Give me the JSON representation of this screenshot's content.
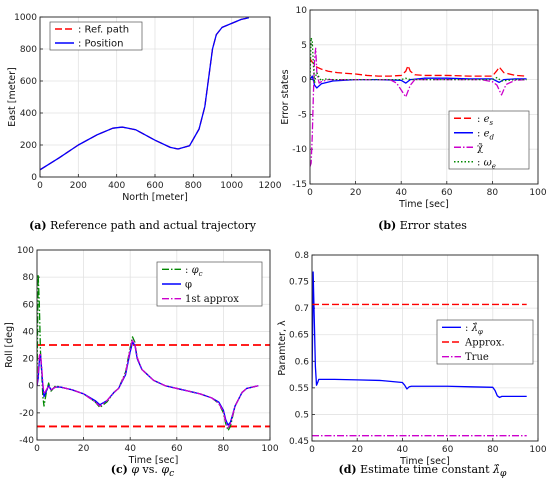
{
  "chart_data": [
    {
      "id": "a",
      "type": "line",
      "caption_label": "(a)",
      "caption_text": "Reference path and actual trajectory",
      "xlabel": "North [meter]",
      "ylabel": "East [meter]",
      "xlim": [
        0,
        1200
      ],
      "ylim": [
        0,
        1000
      ],
      "xticks": [
        0,
        200,
        400,
        600,
        800,
        1000,
        1200
      ],
      "yticks": [
        0,
        200,
        400,
        600,
        800,
        1000
      ],
      "grid": true,
      "legend_position": "top-left",
      "series": [
        {
          "name": ": Ref. path",
          "color": "#ff0000",
          "dash": "dashed",
          "x": [
            0,
            100,
            200,
            300,
            380,
            430,
            500,
            600,
            680,
            720,
            780,
            830,
            860,
            880,
            900,
            920,
            950,
            1000,
            1050,
            1090
          ],
          "y": [
            45,
            120,
            200,
            265,
            305,
            312,
            295,
            230,
            185,
            175,
            195,
            300,
            440,
            620,
            800,
            890,
            935,
            960,
            985,
            995
          ]
        },
        {
          "name": ": Position",
          "color": "#0000ff",
          "dash": "solid",
          "x": [
            0,
            100,
            200,
            300,
            380,
            430,
            500,
            600,
            680,
            720,
            780,
            830,
            860,
            880,
            900,
            920,
            950,
            1000,
            1050,
            1090
          ],
          "y": [
            45,
            120,
            200,
            265,
            305,
            312,
            295,
            230,
            185,
            175,
            195,
            300,
            440,
            620,
            800,
            890,
            935,
            960,
            985,
            995
          ]
        }
      ]
    },
    {
      "id": "b",
      "type": "line",
      "caption_label": "(b)",
      "caption_text": "Error states",
      "xlabel": "Time [sec]",
      "ylabel": "Error states",
      "xlim": [
        0,
        100
      ],
      "ylim": [
        -15,
        10
      ],
      "xticks": [
        0,
        20,
        40,
        60,
        80,
        100
      ],
      "yticks": [
        -15,
        -10,
        -5,
        0,
        5,
        10
      ],
      "grid": true,
      "legend_position": "bottom-right",
      "series": [
        {
          "name": "e_s",
          "color": "#ff0000",
          "dash": "dashed",
          "x": [
            0,
            1,
            2,
            3,
            5,
            8,
            12,
            16,
            20,
            25,
            30,
            35,
            40,
            42,
            43,
            44,
            46,
            50,
            60,
            70,
            80,
            82,
            83,
            85,
            90,
            95
          ],
          "y": [
            3,
            2.5,
            2.2,
            1.8,
            1.5,
            1.2,
            1,
            0.9,
            0.8,
            0.6,
            0.5,
            0.5,
            0.6,
            1.2,
            2,
            1.2,
            0.7,
            0.6,
            0.6,
            0.5,
            0.5,
            1.3,
            1.8,
            1.0,
            0.6,
            0.5
          ]
        },
        {
          "name": "e_d",
          "color": "#0000ff",
          "dash": "solid",
          "x": [
            0,
            1,
            2,
            3,
            5,
            10,
            20,
            30,
            40,
            42,
            44,
            50,
            60,
            70,
            80,
            83,
            85,
            90,
            95
          ],
          "y": [
            0,
            0.5,
            -0.8,
            -1.2,
            -0.6,
            -0.2,
            0,
            0,
            -0.1,
            -0.5,
            0,
            0.2,
            0.2,
            0.1,
            0.1,
            -0.4,
            0,
            0.1,
            0.1
          ]
        },
        {
          "name": "χ̃",
          "color": "#cc00cc",
          "dash": "dashdot",
          "x": [
            0,
            0.5,
            1,
            1.5,
            2,
            2.5,
            3,
            4,
            5,
            8,
            15,
            25,
            35,
            38,
            40,
            42,
            44,
            46,
            55,
            65,
            75,
            80,
            82,
            84,
            86,
            90,
            95
          ],
          "y": [
            -12.5,
            -12,
            -8,
            -2,
            3,
            4.5,
            1,
            -0.5,
            -0.3,
            0,
            0,
            0,
            0,
            -0.5,
            -1.5,
            -2.5,
            -0.8,
            0,
            0,
            0,
            0,
            -0.3,
            -0.8,
            -2.2,
            -0.7,
            -0.1,
            0
          ]
        },
        {
          "name": "ω_e",
          "color": "#008800",
          "dash": "dotted",
          "x": [
            0,
            0.5,
            1,
            1.5,
            2,
            2.5,
            3,
            4,
            5,
            6,
            10,
            20,
            30,
            40,
            42,
            44,
            50,
            60,
            70,
            80,
            82,
            84,
            90,
            95
          ],
          "y": [
            0,
            6,
            5.5,
            2,
            -0.5,
            0.5,
            1,
            0.3,
            -0.2,
            0.1,
            0,
            0,
            0,
            0,
            0.2,
            0,
            0,
            0,
            0,
            0,
            0.3,
            -0.2,
            0,
            0
          ]
        }
      ]
    },
    {
      "id": "c",
      "type": "line",
      "caption_label": "(c)",
      "caption_math_1": "φ",
      "caption_text_mid": " vs. ",
      "caption_math_2": "φ",
      "caption_sub_2": "c",
      "xlabel": "Time [sec]",
      "ylabel": "Roll [deg]",
      "xlim": [
        0,
        100
      ],
      "ylim": [
        -40,
        100
      ],
      "xticks": [
        0,
        20,
        40,
        60,
        80,
        100
      ],
      "yticks": [
        -40,
        -20,
        0,
        20,
        40,
        60,
        80,
        100
      ],
      "grid": true,
      "legend_position": "top-right",
      "limits": [
        30,
        -30
      ],
      "limit_color": "#ff0000",
      "series": [
        {
          "name": "φ_c",
          "color": "#008800",
          "dash": "dashdot",
          "x": [
            0,
            0.5,
            1,
            1.5,
            2,
            2.5,
            3,
            4,
            5,
            6,
            8,
            10,
            15,
            20,
            25,
            27,
            30,
            33,
            35,
            38,
            40,
            41,
            42,
            43,
            45,
            50,
            55,
            60,
            65,
            70,
            75,
            78,
            80,
            81,
            82,
            83,
            85,
            88,
            90,
            95
          ],
          "y": [
            0,
            82,
            60,
            25,
            10,
            -8,
            -15,
            -5,
            2,
            -4,
            0,
            -1,
            -3,
            -6,
            -12,
            -16,
            -12,
            -5,
            -2,
            10,
            28,
            36,
            32,
            20,
            12,
            4,
            0,
            -2,
            -4,
            -6,
            -9,
            -13,
            -20,
            -28,
            -33,
            -30,
            -15,
            -5,
            -2,
            0
          ]
        },
        {
          "name": "φ",
          "color": "#0000ff",
          "dash": "solid",
          "x": [
            0,
            0.5,
            1,
            1.5,
            2,
            2.5,
            3,
            4,
            5,
            6,
            8,
            10,
            15,
            20,
            25,
            27,
            30,
            33,
            35,
            38,
            40,
            41,
            42,
            43,
            45,
            50,
            55,
            60,
            65,
            70,
            75,
            78,
            80,
            81,
            82,
            83,
            85,
            88,
            90,
            95
          ],
          "y": [
            0,
            5,
            18,
            22,
            12,
            0,
            -8,
            -4,
            0,
            -3,
            -1,
            -1,
            -3,
            -6,
            -11,
            -14,
            -11,
            -5,
            -2,
            8,
            25,
            32,
            30,
            20,
            12,
            4,
            0,
            -2,
            -4,
            -6,
            -9,
            -12,
            -18,
            -25,
            -29,
            -27,
            -15,
            -5,
            -2,
            0
          ]
        },
        {
          "name": "1st approx",
          "color": "#cc00cc",
          "dash": "dashdot",
          "x": [
            0,
            0.5,
            1,
            1.5,
            2,
            2.5,
            3,
            4,
            5,
            6,
            8,
            10,
            15,
            20,
            25,
            27,
            30,
            33,
            35,
            38,
            40,
            41,
            42,
            43,
            45,
            50,
            55,
            60,
            65,
            70,
            75,
            78,
            80,
            81,
            82,
            83,
            85,
            88,
            90,
            95
          ],
          "y": [
            0,
            8,
            22,
            24,
            14,
            2,
            -6,
            -3,
            0,
            -3,
            -1,
            -1,
            -3,
            -6,
            -12,
            -15,
            -11,
            -5,
            -2,
            9,
            27,
            34,
            31,
            21,
            12,
            4,
            0,
            -2,
            -4,
            -6,
            -9,
            -13,
            -19,
            -27,
            -31,
            -28,
            -15,
            -5,
            -2,
            0
          ]
        }
      ]
    },
    {
      "id": "d",
      "type": "line",
      "caption_label": "(d)",
      "caption_text": "Estimate time constant ",
      "caption_math": "λ̂",
      "caption_sub": "φ",
      "xlabel": "Time [sec]",
      "ylabel": "Paramter, λ",
      "xlim": [
        0,
        100
      ],
      "ylim": [
        0.45,
        0.8
      ],
      "xticks": [
        0,
        20,
        40,
        60,
        80,
        100
      ],
      "yticks": [
        0.45,
        0.5,
        0.55,
        0.6,
        0.65,
        0.7,
        0.75,
        0.8
      ],
      "grid": true,
      "legend_position": "right",
      "series": [
        {
          "name": "λ̂_φ",
          "color": "#0000ff",
          "dash": "solid",
          "x": [
            0,
            0.5,
            1,
            1.5,
            2,
            2.5,
            3,
            5,
            10,
            20,
            30,
            40,
            41,
            42,
            43,
            44,
            45,
            50,
            60,
            70,
            80,
            81,
            82,
            83,
            84,
            86,
            90,
            95
          ],
          "y": [
            0.55,
            0.768,
            0.68,
            0.59,
            0.555,
            0.56,
            0.566,
            0.566,
            0.566,
            0.565,
            0.564,
            0.56,
            0.555,
            0.548,
            0.552,
            0.553,
            0.553,
            0.553,
            0.553,
            0.552,
            0.551,
            0.545,
            0.535,
            0.532,
            0.534,
            0.534,
            0.534,
            0.534
          ]
        },
        {
          "name": "Approx.",
          "color": "#ff0000",
          "dash": "dashed",
          "x": [
            0,
            95
          ],
          "y": [
            0.707,
            0.707
          ]
        },
        {
          "name": "True",
          "color": "#cc00cc",
          "dash": "dashdot",
          "x": [
            0,
            95
          ],
          "y": [
            0.46,
            0.46
          ]
        }
      ]
    }
  ]
}
